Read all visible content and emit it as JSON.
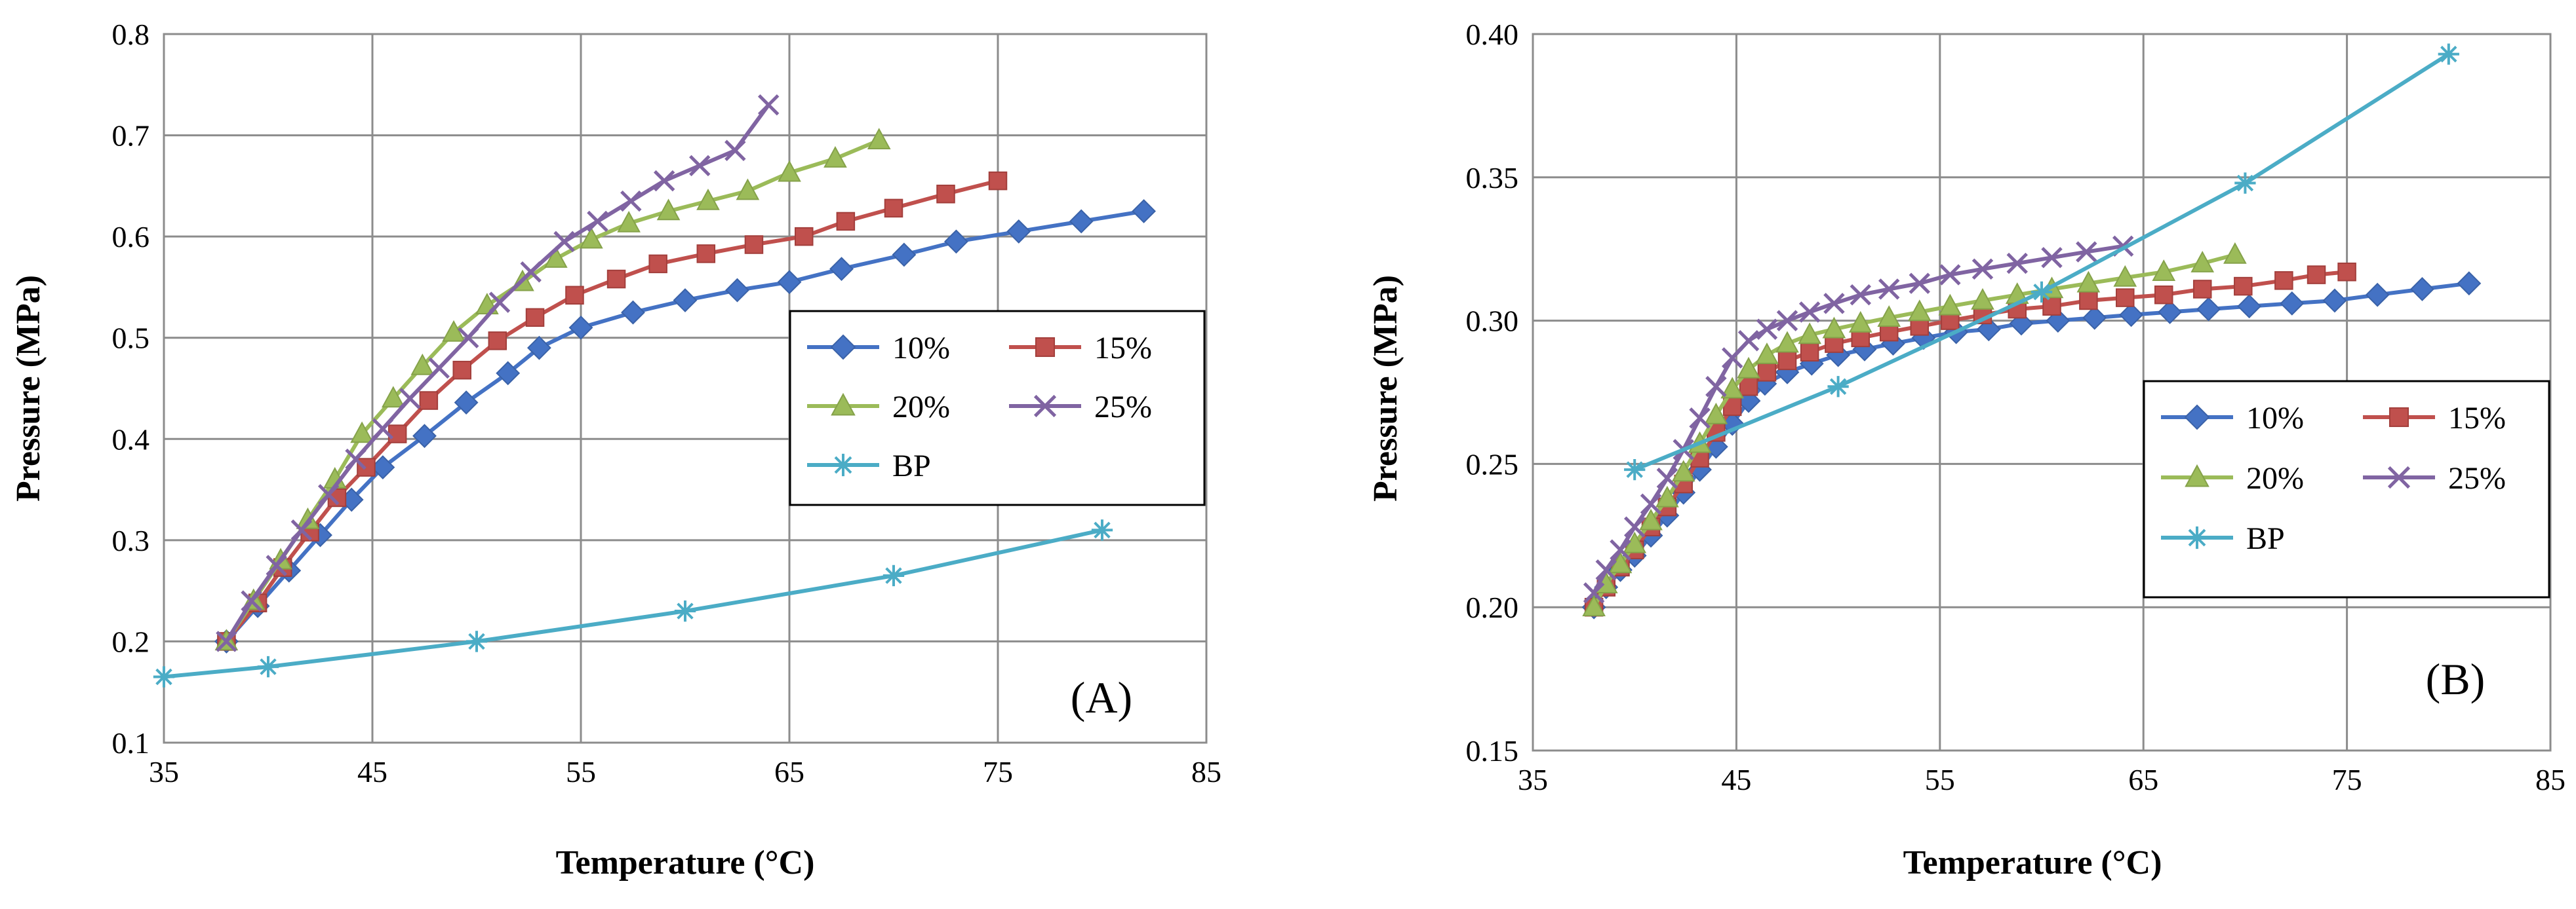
{
  "chart_data": [
    {
      "type": "line",
      "panel_label": "(A)",
      "xlabel": "Temperature (°C)",
      "ylabel": "Pressure (MPa)",
      "xlim": [
        35,
        85
      ],
      "ylim": [
        0.1,
        0.8
      ],
      "xticks": [
        "35",
        "45",
        "55",
        "65",
        "75",
        "85"
      ],
      "yticks": [
        "0.1",
        "0.2",
        "0.3",
        "0.4",
        "0.5",
        "0.6",
        "0.7",
        "0.8"
      ],
      "grid": true,
      "legend_placement": "right",
      "series": [
        {
          "name": "10%",
          "marker": "diamond",
          "color": "#4472C4",
          "x": [
            38,
            39.5,
            41,
            42.5,
            44,
            45.5,
            47.5,
            49.5,
            51.5,
            53,
            55,
            57.5,
            60,
            62.5,
            65,
            67.5,
            70.5,
            73,
            76,
            79,
            82
          ],
          "y": [
            0.2,
            0.235,
            0.27,
            0.305,
            0.34,
            0.372,
            0.403,
            0.436,
            0.465,
            0.49,
            0.51,
            0.525,
            0.537,
            0.547,
            0.555,
            0.568,
            0.582,
            0.595,
            0.605,
            0.615,
            0.625
          ]
        },
        {
          "name": "15%",
          "marker": "square",
          "color": "#C0504D",
          "x": [
            38,
            39.5,
            40.7,
            42,
            43.3,
            44.7,
            46.2,
            47.7,
            49.3,
            51,
            52.8,
            54.7,
            56.7,
            58.7,
            61,
            63.3,
            65.7,
            67.7,
            70,
            72.5,
            75
          ],
          "y": [
            0.2,
            0.238,
            0.273,
            0.308,
            0.342,
            0.372,
            0.405,
            0.438,
            0.468,
            0.497,
            0.52,
            0.542,
            0.558,
            0.573,
            0.583,
            0.592,
            0.6,
            0.615,
            0.628,
            0.642,
            0.655
          ]
        },
        {
          "name": "20%",
          "marker": "triangle",
          "color": "#9BBB59",
          "x": [
            38,
            39.3,
            40.6,
            41.9,
            43.2,
            44.5,
            46,
            47.4,
            48.9,
            50.5,
            52.2,
            53.8,
            55.5,
            57.3,
            59.2,
            61.1,
            63,
            65,
            67.2,
            69.3
          ],
          "y": [
            0.2,
            0.24,
            0.28,
            0.32,
            0.36,
            0.405,
            0.44,
            0.472,
            0.505,
            0.532,
            0.555,
            0.578,
            0.597,
            0.613,
            0.625,
            0.635,
            0.645,
            0.663,
            0.677,
            0.695
          ]
        },
        {
          "name": "25%",
          "marker": "x",
          "color": "#8064A2",
          "x": [
            38,
            39.2,
            40.4,
            41.6,
            42.9,
            44.2,
            45.5,
            46.8,
            48.2,
            49.6,
            51.1,
            52.6,
            54.2,
            55.8,
            57.4,
            59,
            60.7,
            62.4,
            64
          ],
          "y": [
            0.2,
            0.24,
            0.275,
            0.31,
            0.345,
            0.38,
            0.41,
            0.44,
            0.47,
            0.5,
            0.535,
            0.565,
            0.595,
            0.615,
            0.635,
            0.655,
            0.67,
            0.685,
            0.73
          ]
        },
        {
          "name": "BP",
          "marker": "star",
          "color": "#4BACC6",
          "x": [
            35,
            40,
            50,
            60,
            70,
            80
          ],
          "y": [
            0.165,
            0.175,
            0.2,
            0.23,
            0.265,
            0.31
          ]
        }
      ]
    },
    {
      "type": "line",
      "panel_label": "(B)",
      "xlabel": "Temperature (°C)",
      "ylabel": "Pressure (MPa)",
      "xlim": [
        35,
        85
      ],
      "ylim": [
        0.15,
        0.4
      ],
      "xticks": [
        "35",
        "45",
        "55",
        "65",
        "75",
        "85"
      ],
      "yticks": [
        "0.15",
        "0.20",
        "0.25",
        "0.30",
        "0.35",
        "0.40"
      ],
      "grid": true,
      "legend_placement": "right",
      "series": [
        {
          "name": "10%",
          "marker": "diamond",
          "color": "#4472C4",
          "x": [
            38,
            38.6,
            39.3,
            40,
            40.8,
            41.6,
            42.4,
            43.2,
            44,
            44.8,
            45.6,
            46.4,
            47.5,
            48.7,
            50,
            51.3,
            52.7,
            54.2,
            55.8,
            57.4,
            59,
            60.8,
            62.6,
            64.4,
            66.3,
            68.2,
            70.2,
            72.3,
            74.4,
            76.5,
            78.7,
            81
          ],
          "y": [
            0.2,
            0.207,
            0.213,
            0.218,
            0.225,
            0.232,
            0.24,
            0.248,
            0.256,
            0.264,
            0.272,
            0.278,
            0.282,
            0.285,
            0.288,
            0.29,
            0.292,
            0.294,
            0.296,
            0.297,
            0.299,
            0.3,
            0.301,
            0.302,
            0.303,
            0.304,
            0.305,
            0.306,
            0.307,
            0.309,
            0.311,
            0.313
          ]
        },
        {
          "name": "15%",
          "marker": "square",
          "color": "#C0504D",
          "x": [
            38,
            38.6,
            39.3,
            40,
            40.8,
            41.6,
            42.4,
            43.2,
            44,
            44.8,
            45.6,
            46.5,
            47.5,
            48.6,
            49.8,
            51.1,
            52.5,
            54,
            55.5,
            57.1,
            58.8,
            60.5,
            62.3,
            64.1,
            66,
            67.9,
            69.9,
            71.9,
            73.5,
            75
          ],
          "y": [
            0.2,
            0.207,
            0.214,
            0.22,
            0.228,
            0.235,
            0.243,
            0.252,
            0.261,
            0.27,
            0.277,
            0.282,
            0.286,
            0.289,
            0.292,
            0.294,
            0.296,
            0.298,
            0.3,
            0.302,
            0.304,
            0.305,
            0.307,
            0.308,
            0.309,
            0.311,
            0.312,
            0.314,
            0.316,
            0.317
          ]
        },
        {
          "name": "20%",
          "marker": "triangle",
          "color": "#9BBB59",
          "x": [
            38,
            38.6,
            39.3,
            40,
            40.8,
            41.6,
            42.4,
            43.2,
            44,
            44.8,
            45.6,
            46.5,
            47.5,
            48.6,
            49.8,
            51.1,
            52.5,
            54,
            55.5,
            57.1,
            58.8,
            60.5,
            62.3,
            64.1,
            66,
            67.9,
            69.5
          ],
          "y": [
            0.2,
            0.208,
            0.215,
            0.222,
            0.23,
            0.238,
            0.247,
            0.257,
            0.267,
            0.276,
            0.283,
            0.288,
            0.292,
            0.295,
            0.297,
            0.299,
            0.301,
            0.303,
            0.305,
            0.307,
            0.309,
            0.311,
            0.313,
            0.315,
            0.317,
            0.32,
            0.323
          ]
        },
        {
          "name": "25%",
          "marker": "x",
          "color": "#8064A2",
          "x": [
            38,
            38.6,
            39.3,
            40,
            40.8,
            41.6,
            42.4,
            43.2,
            44,
            44.8,
            45.6,
            46.5,
            47.5,
            48.6,
            49.8,
            51.1,
            52.5,
            54,
            55.5,
            57.1,
            58.8,
            60.5,
            62.2,
            64
          ],
          "y": [
            0.205,
            0.213,
            0.22,
            0.228,
            0.236,
            0.245,
            0.255,
            0.266,
            0.277,
            0.287,
            0.293,
            0.297,
            0.3,
            0.303,
            0.306,
            0.309,
            0.311,
            0.313,
            0.316,
            0.318,
            0.32,
            0.322,
            0.324,
            0.326
          ]
        },
        {
          "name": "BP",
          "marker": "star",
          "color": "#4BACC6",
          "x": [
            40,
            50,
            60,
            70,
            80
          ],
          "y": [
            0.248,
            0.277,
            0.31,
            0.348,
            0.393
          ]
        }
      ]
    }
  ]
}
